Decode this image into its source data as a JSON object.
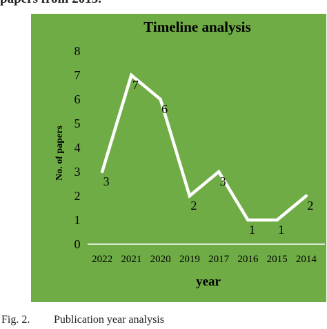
{
  "header_text": "papers from 2015.",
  "caption": {
    "label": "Fig. 2.",
    "text": "Publication year analysis"
  },
  "colors": {
    "panel_background": "#6fac46",
    "line": "#ffffff",
    "text": "#000000"
  },
  "chart_data": {
    "type": "line",
    "title": "Timeline analysis",
    "xlabel": "year",
    "ylabel": "No. of papers",
    "categories": [
      "2022",
      "2021",
      "2020",
      "2019",
      "2017",
      "2016",
      "2015",
      "2014"
    ],
    "series": [
      {
        "values": [
          3,
          7,
          6,
          2,
          3,
          1,
          1,
          2
        ]
      }
    ],
    "data_labels": [
      "3",
      "7",
      "6",
      "2",
      "3",
      "1",
      "1",
      "2"
    ],
    "ylim": [
      0,
      8
    ],
    "yticks": [
      "0",
      "1",
      "2",
      "3",
      "4",
      "5",
      "6",
      "7",
      "8"
    ],
    "grid": false,
    "legend": "none"
  }
}
